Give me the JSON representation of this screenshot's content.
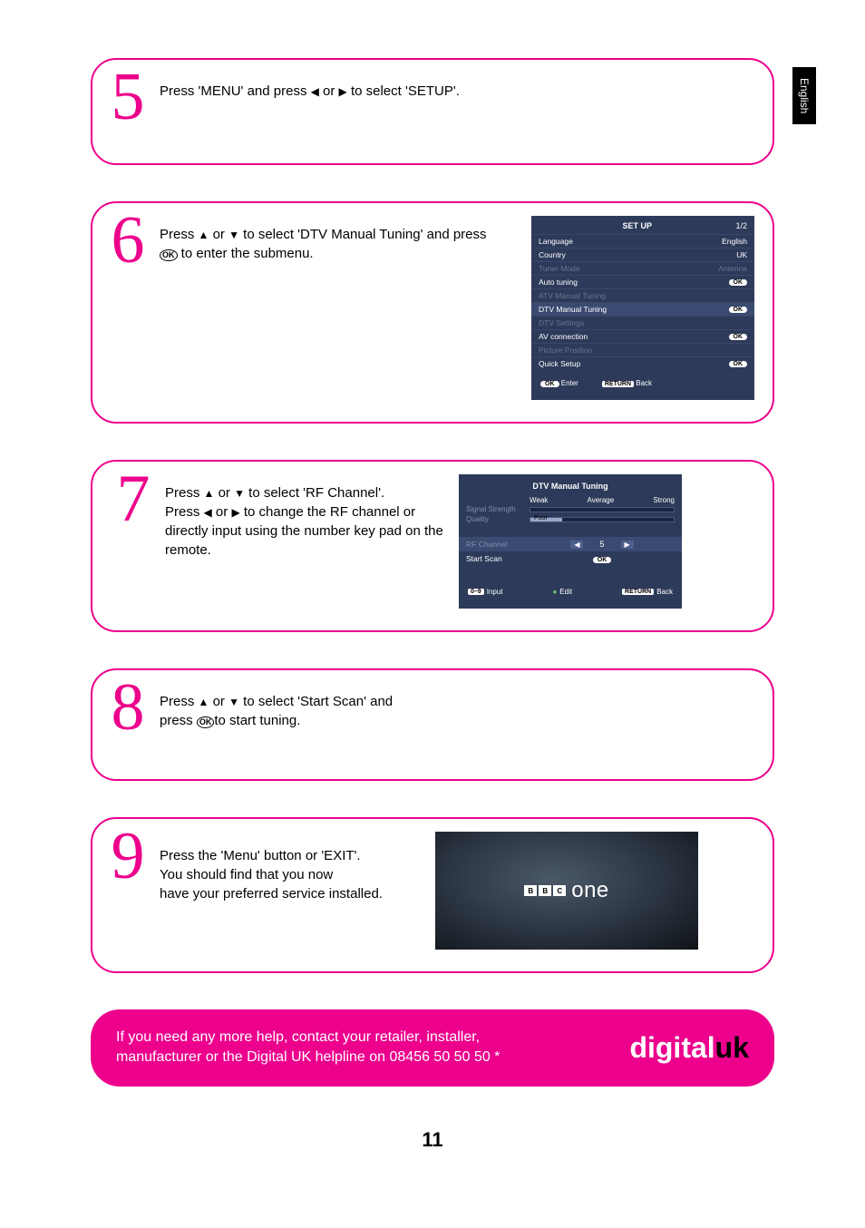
{
  "lang_tab": "English",
  "steps": {
    "s5": {
      "num": "5",
      "text_before": "Press 'MENU' and press ",
      "l": "◀",
      "or": " or ",
      "r": "▶",
      "text_after": " to select 'SETUP'."
    },
    "s6": {
      "num": "6",
      "line1_a": "Press ",
      "u": "▲",
      "or": " or ",
      "d": "▼",
      "line1_b": " to select 'DTV Manual Tuning' and press",
      "line2_a": " to enter the submenu."
    },
    "s7": {
      "num": "7",
      "l1a": "Press ",
      "u": "▲",
      "or": " or ",
      "d": "▼",
      "l1b": " to select 'RF Channel'.",
      "l2a": "Press ",
      "left": "◀",
      "right": "▶",
      "l2b": " to change the RF channel or directly input using the number key pad on the remote."
    },
    "s8": {
      "num": "8",
      "l1a": "Press ",
      "u": "▲",
      "or": " or ",
      "d": "▼",
      "l1b": " to select 'Start Scan' and",
      "l2a": "press ",
      "l2b": "to start tuning."
    },
    "s9": {
      "num": "9",
      "l1": "Press the 'Menu' button or 'EXIT'.",
      "l2": "You should find that you now",
      "l3": "have your preferred service installed."
    }
  },
  "setup_menu": {
    "title": "SET UP",
    "page": "1/2",
    "items": [
      {
        "label": "Language",
        "value": "English",
        "dim": false
      },
      {
        "label": "Country",
        "value": "UK",
        "dim": false
      },
      {
        "label": "Tuner Mode",
        "value": "Antenna",
        "dim": true
      },
      {
        "label": "Auto tuning",
        "value": "OK",
        "pill": true,
        "dim": false
      },
      {
        "label": "ATV Manual Tuning",
        "value": "",
        "dim": true
      },
      {
        "label": "DTV Manual Tuning",
        "value": "OK",
        "pill": true,
        "hl": true,
        "dim": false
      },
      {
        "label": "DTV Settings",
        "value": "",
        "dim": true
      },
      {
        "label": "AV connection",
        "value": "OK",
        "pill": true,
        "dim": false
      },
      {
        "label": "Picture Position",
        "value": "",
        "dim": true
      },
      {
        "label": "Quick Setup",
        "value": "OK",
        "pill": true,
        "dim": false
      }
    ],
    "footer": {
      "enter_pill": "OK",
      "enter": "Enter",
      "back_pill": "RETURN",
      "back": "Back"
    }
  },
  "dtv_menu": {
    "title": "DTV Manual Tuning",
    "scale": {
      "weak": "Weak",
      "avg": "Average",
      "strong": "Strong"
    },
    "signal_label": "Signal Strength",
    "quality_label": "Quality",
    "quality_text": "Poor",
    "rf_label": "RF Channel",
    "rf_value": "5",
    "scan_label": "Start Scan",
    "scan_pill": "OK",
    "footer": {
      "input_pill": "0–9",
      "input": "Input",
      "edit_dot": "●",
      "edit": "Edit",
      "back_pill": "RETURN",
      "back": "Back"
    }
  },
  "bbc": {
    "b": "B",
    "b2": "B",
    "c": "C",
    "one": "one"
  },
  "help": {
    "line1": "If you need any more help, contact your retailer, installer,",
    "line2": "manufacturer or the Digital UK helpline on 08456 50 50 50 *",
    "brand1": "digital",
    "brand2": "uk"
  },
  "page_number": "11",
  "ok_glyph": "OK",
  "colors": {
    "accent": "#ec008c",
    "menu_bg": "#2d3a5a"
  }
}
